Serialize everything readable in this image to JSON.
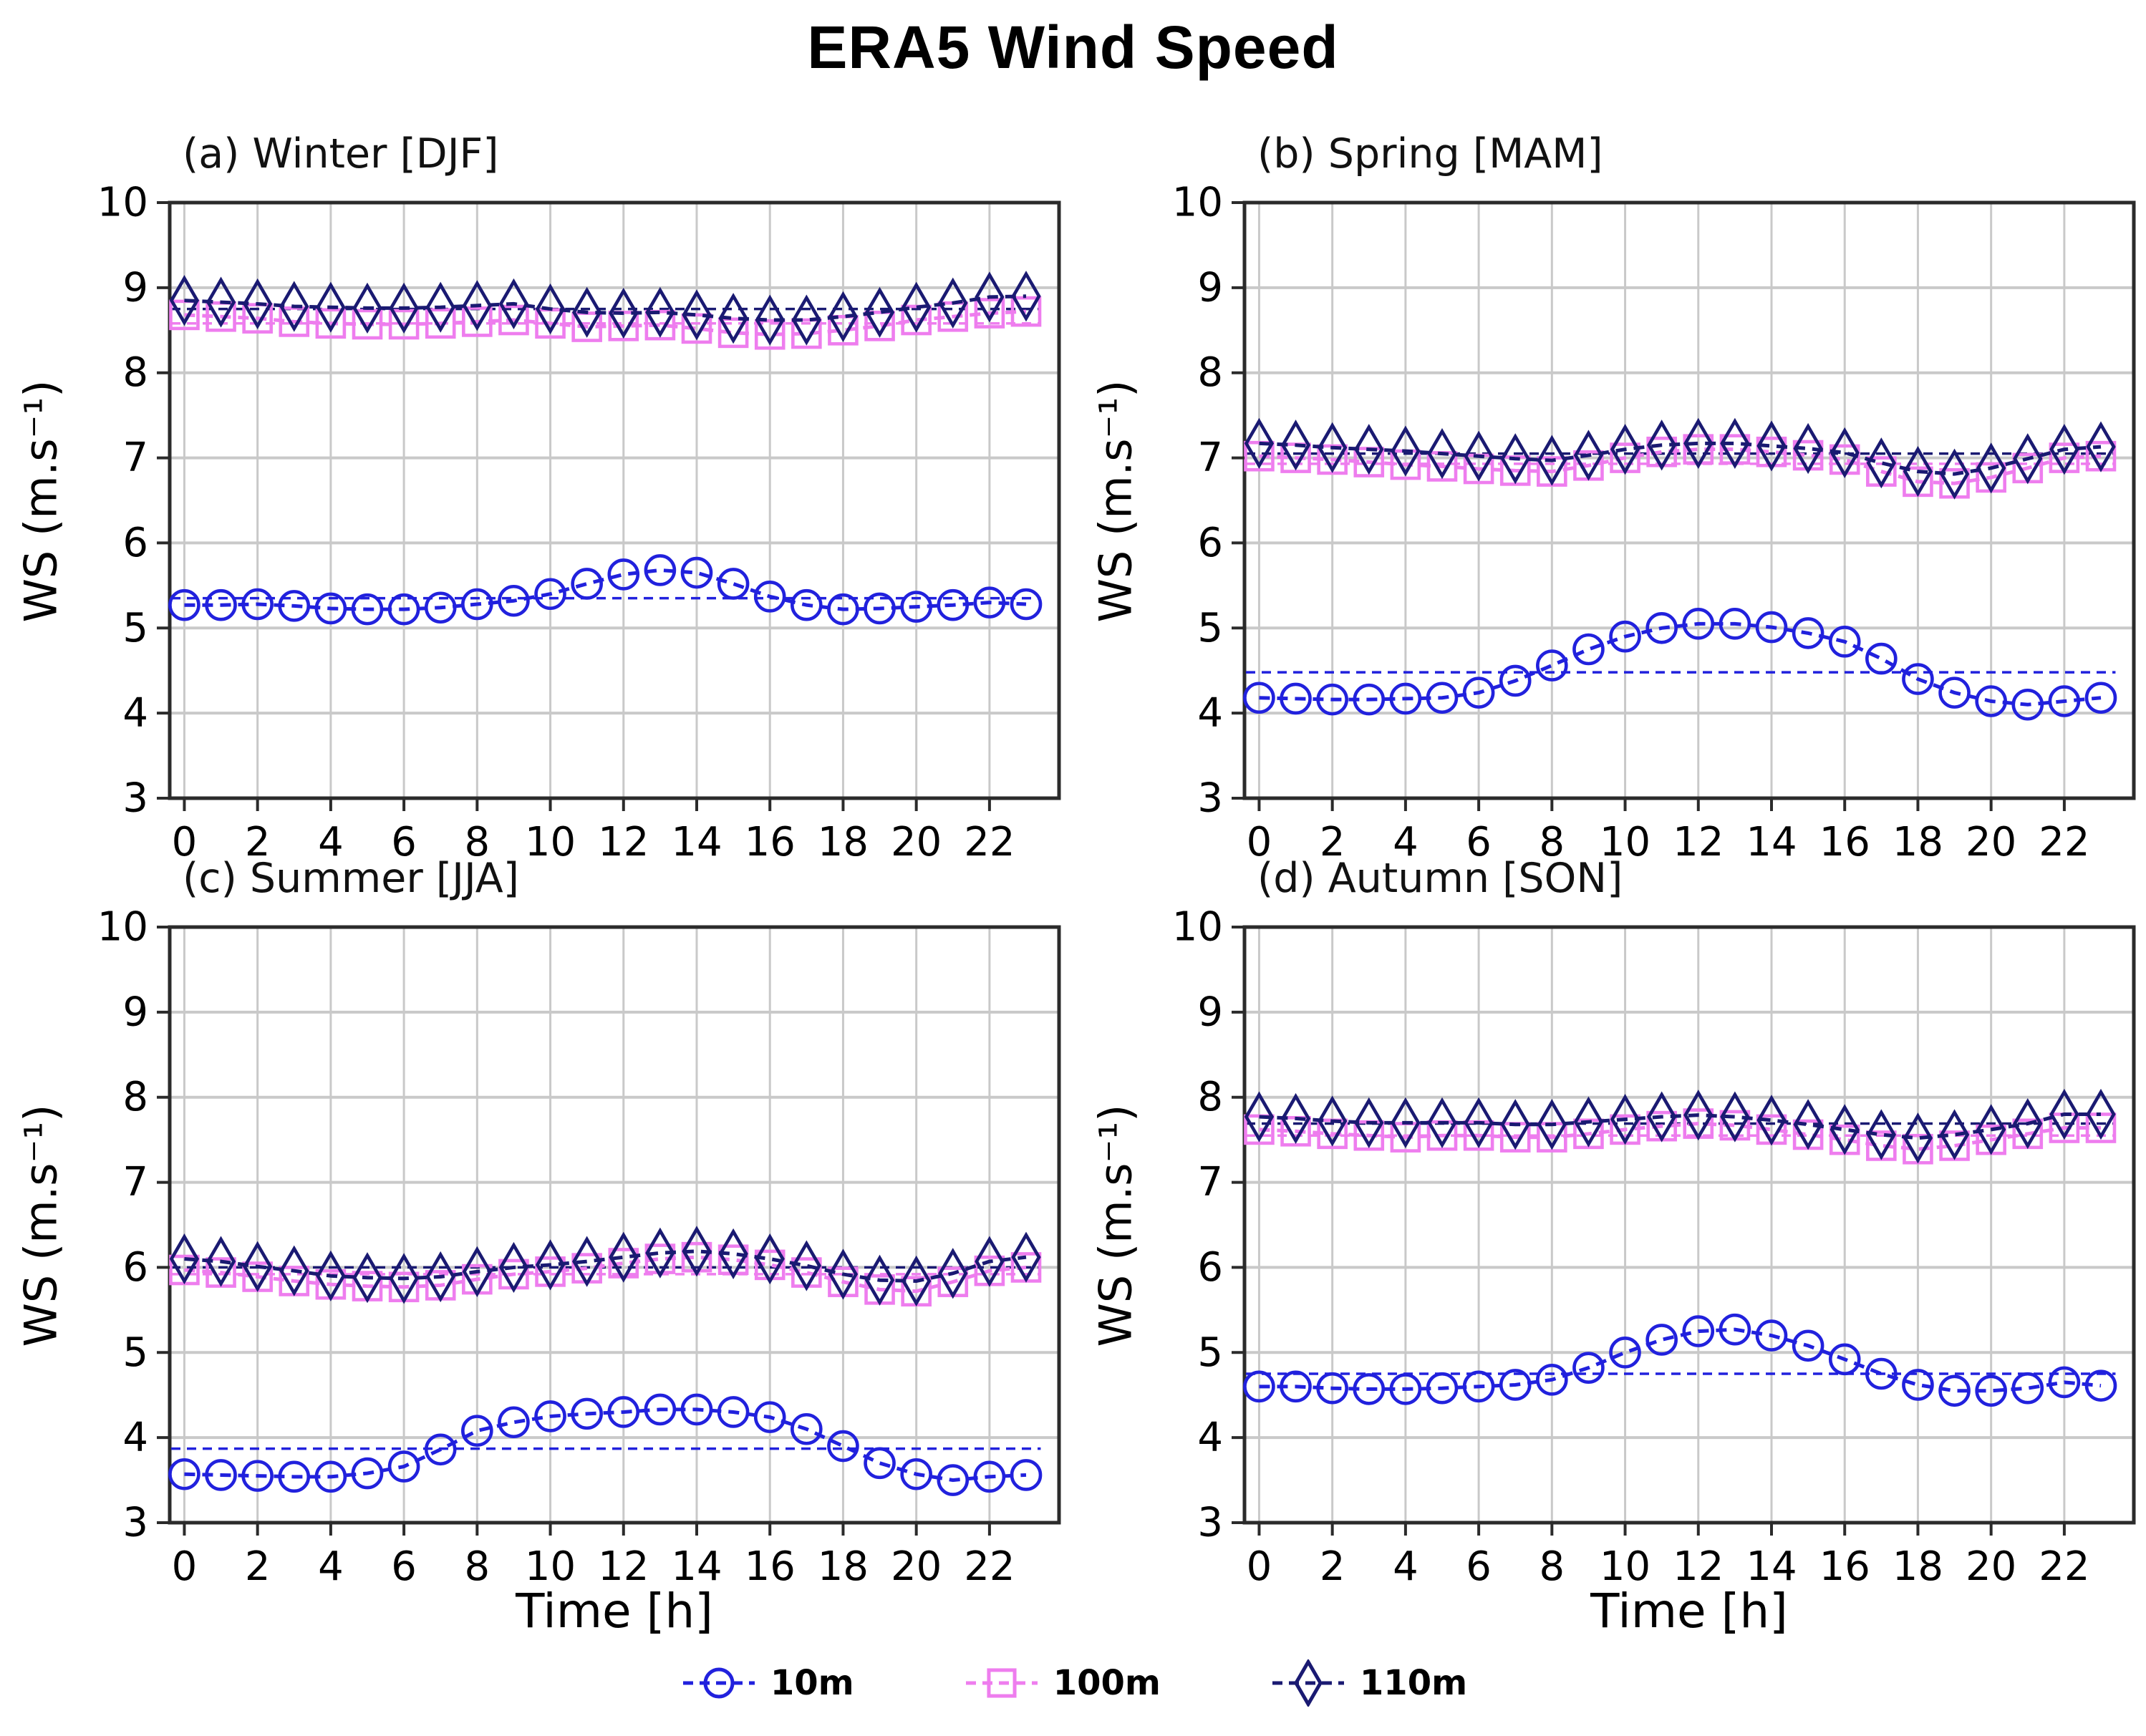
{
  "title": "ERA5 Wind Speed",
  "ylabel": "WS (m.s⁻¹)",
  "xlabel": "Time [h]",
  "colors": {
    "wind10m": "#2121dd",
    "wind100m": "#ee7dee",
    "wind110m": "#1a1a72",
    "grid": "#c9c9c9",
    "frame": "#2b2b2b"
  },
  "legend": [
    {
      "label": "10m",
      "marker": "circle",
      "color": "#2121dd"
    },
    {
      "label": "100m",
      "marker": "square",
      "color": "#ee7dee"
    },
    {
      "label": "110m",
      "marker": "diamond",
      "color": "#1a1a72"
    }
  ],
  "chart_data": [
    {
      "type": "line",
      "title": "(a) Winter [DJF]",
      "xlabel": "",
      "ylabel": "WS (m.s⁻¹)",
      "x": [
        0,
        1,
        2,
        3,
        4,
        5,
        6,
        7,
        8,
        9,
        10,
        11,
        12,
        13,
        14,
        15,
        16,
        17,
        18,
        19,
        20,
        21,
        22,
        23
      ],
      "xticks": [
        0,
        2,
        4,
        6,
        8,
        10,
        12,
        14,
        16,
        18,
        20,
        22
      ],
      "yticks": [
        3,
        4,
        5,
        6,
        7,
        8,
        9,
        10
      ],
      "ylim": [
        3,
        10
      ],
      "xlim": [
        -0.4,
        23.9
      ],
      "grid": true,
      "series": [
        {
          "name": "10m",
          "marker": "circle",
          "color": "#2121dd",
          "mean": 5.35,
          "values": [
            5.27,
            5.27,
            5.28,
            5.26,
            5.23,
            5.22,
            5.22,
            5.24,
            5.28,
            5.32,
            5.4,
            5.52,
            5.63,
            5.68,
            5.65,
            5.52,
            5.37,
            5.27,
            5.22,
            5.23,
            5.25,
            5.27,
            5.3,
            5.28
          ]
        },
        {
          "name": "100m",
          "marker": "square",
          "color": "#ee7dee",
          "mean": 8.58,
          "values": [
            8.68,
            8.66,
            8.64,
            8.6,
            8.58,
            8.57,
            8.57,
            8.58,
            8.6,
            8.62,
            8.58,
            8.54,
            8.55,
            8.56,
            8.52,
            8.47,
            8.45,
            8.46,
            8.5,
            8.55,
            8.62,
            8.66,
            8.7,
            8.72
          ]
        },
        {
          "name": "110m",
          "marker": "diamond",
          "color": "#1a1a72",
          "mean": 8.75,
          "values": [
            8.85,
            8.83,
            8.81,
            8.78,
            8.77,
            8.76,
            8.76,
            8.77,
            8.79,
            8.81,
            8.75,
            8.71,
            8.7,
            8.71,
            8.68,
            8.64,
            8.62,
            8.62,
            8.66,
            8.71,
            8.77,
            8.82,
            8.89,
            8.9
          ]
        }
      ]
    },
    {
      "type": "line",
      "title": "(b) Spring [MAM]",
      "xlabel": "",
      "ylabel": "WS (m.s⁻¹)",
      "x": [
        0,
        1,
        2,
        3,
        4,
        5,
        6,
        7,
        8,
        9,
        10,
        11,
        12,
        13,
        14,
        15,
        16,
        17,
        18,
        19,
        20,
        21,
        22,
        23
      ],
      "xticks": [
        0,
        2,
        4,
        6,
        8,
        10,
        12,
        14,
        16,
        18,
        20,
        22
      ],
      "yticks": [
        3,
        4,
        5,
        6,
        7,
        8,
        9,
        10
      ],
      "ylim": [
        3,
        10
      ],
      "xlim": [
        -0.4,
        23.9
      ],
      "grid": true,
      "series": [
        {
          "name": "10m",
          "marker": "circle",
          "color": "#2121dd",
          "mean": 4.48,
          "values": [
            4.18,
            4.17,
            4.16,
            4.16,
            4.17,
            4.18,
            4.24,
            4.38,
            4.56,
            4.75,
            4.9,
            5.0,
            5.05,
            5.05,
            5.01,
            4.94,
            4.84,
            4.64,
            4.4,
            4.24,
            4.14,
            4.1,
            4.14,
            4.18
          ]
        },
        {
          "name": "100m",
          "marker": "square",
          "color": "#ee7dee",
          "mean": 6.93,
          "values": [
            7.02,
            7.0,
            6.98,
            6.95,
            6.92,
            6.9,
            6.87,
            6.85,
            6.84,
            6.91,
            7.0,
            7.07,
            7.1,
            7.1,
            7.07,
            7.03,
            6.98,
            6.84,
            6.72,
            6.7,
            6.77,
            6.88,
            7.0,
            7.02
          ]
        },
        {
          "name": "110m",
          "marker": "diamond",
          "color": "#1a1a72",
          "mean": 7.05,
          "values": [
            7.17,
            7.15,
            7.12,
            7.1,
            7.08,
            7.05,
            7.02,
            6.99,
            6.97,
            7.03,
            7.1,
            7.15,
            7.17,
            7.17,
            7.14,
            7.11,
            7.06,
            6.94,
            6.84,
            6.81,
            6.88,
            6.99,
            7.1,
            7.13
          ]
        }
      ]
    },
    {
      "type": "line",
      "title": "(c) Summer [JJA]",
      "xlabel": "Time [h]",
      "ylabel": "WS (m.s⁻¹)",
      "x": [
        0,
        1,
        2,
        3,
        4,
        5,
        6,
        7,
        8,
        9,
        10,
        11,
        12,
        13,
        14,
        15,
        16,
        17,
        18,
        19,
        20,
        21,
        22,
        23
      ],
      "xticks": [
        0,
        2,
        4,
        6,
        8,
        10,
        12,
        14,
        16,
        18,
        20,
        22
      ],
      "yticks": [
        3,
        4,
        5,
        6,
        7,
        8,
        9,
        10
      ],
      "ylim": [
        3,
        10
      ],
      "xlim": [
        -0.4,
        23.9
      ],
      "grid": true,
      "series": [
        {
          "name": "10m",
          "marker": "circle",
          "color": "#2121dd",
          "mean": 3.87,
          "values": [
            3.57,
            3.56,
            3.55,
            3.54,
            3.54,
            3.58,
            3.66,
            3.86,
            4.08,
            4.18,
            4.25,
            4.28,
            4.3,
            4.33,
            4.33,
            4.3,
            4.24,
            4.1,
            3.9,
            3.7,
            3.57,
            3.5,
            3.54,
            3.56
          ]
        },
        {
          "name": "100m",
          "marker": "square",
          "color": "#ee7dee",
          "mean": 5.92,
          "values": [
            5.97,
            5.94,
            5.89,
            5.84,
            5.8,
            5.78,
            5.77,
            5.79,
            5.86,
            5.92,
            5.95,
            5.99,
            6.05,
            6.1,
            6.12,
            6.09,
            6.03,
            5.94,
            5.83,
            5.74,
            5.72,
            5.83,
            5.96,
            6.0
          ]
        },
        {
          "name": "110m",
          "marker": "diamond",
          "color": "#1a1a72",
          "mean": 6.0,
          "values": [
            6.1,
            6.07,
            6.01,
            5.96,
            5.9,
            5.88,
            5.87,
            5.89,
            5.95,
            6.0,
            6.03,
            6.07,
            6.12,
            6.17,
            6.19,
            6.16,
            6.1,
            6.02,
            5.92,
            5.85,
            5.84,
            5.93,
            6.07,
            6.12
          ]
        }
      ]
    },
    {
      "type": "line",
      "title": "(d) Autumn [SON]",
      "xlabel": "Time [h]",
      "ylabel": "WS (m.s⁻¹)",
      "x": [
        0,
        1,
        2,
        3,
        4,
        5,
        6,
        7,
        8,
        9,
        10,
        11,
        12,
        13,
        14,
        15,
        16,
        17,
        18,
        19,
        20,
        21,
        22,
        23
      ],
      "xticks": [
        0,
        2,
        4,
        6,
        8,
        10,
        12,
        14,
        16,
        18,
        20,
        22
      ],
      "yticks": [
        3,
        4,
        5,
        6,
        7,
        8,
        9,
        10
      ],
      "ylim": [
        3,
        10
      ],
      "xlim": [
        -0.4,
        23.9
      ],
      "grid": true,
      "series": [
        {
          "name": "10m",
          "marker": "circle",
          "color": "#2121dd",
          "mean": 4.75,
          "values": [
            4.6,
            4.6,
            4.58,
            4.57,
            4.57,
            4.58,
            4.6,
            4.62,
            4.68,
            4.82,
            5.0,
            5.15,
            5.25,
            5.27,
            5.2,
            5.08,
            4.92,
            4.75,
            4.62,
            4.55,
            4.55,
            4.58,
            4.65,
            4.61
          ]
        },
        {
          "name": "100m",
          "marker": "square",
          "color": "#ee7dee",
          "mean": 7.55,
          "values": [
            7.62,
            7.6,
            7.57,
            7.55,
            7.53,
            7.55,
            7.55,
            7.53,
            7.53,
            7.57,
            7.62,
            7.66,
            7.69,
            7.67,
            7.62,
            7.56,
            7.5,
            7.43,
            7.39,
            7.43,
            7.5,
            7.57,
            7.64,
            7.64
          ]
        },
        {
          "name": "110m",
          "marker": "diamond",
          "color": "#1a1a72",
          "mean": 7.69,
          "values": [
            7.77,
            7.75,
            7.72,
            7.7,
            7.7,
            7.7,
            7.7,
            7.68,
            7.68,
            7.71,
            7.74,
            7.77,
            7.79,
            7.77,
            7.73,
            7.68,
            7.62,
            7.56,
            7.52,
            7.56,
            7.62,
            7.69,
            7.8,
            7.8
          ]
        }
      ]
    }
  ]
}
